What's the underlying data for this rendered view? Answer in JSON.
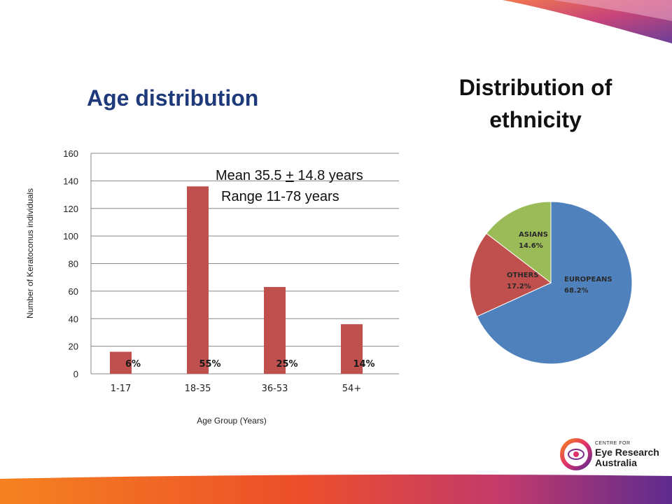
{
  "age_title": "Age distribution",
  "ethnicity_title_line1": "Distribution of",
  "ethnicity_title_line2": "ethnicity",
  "annotation": {
    "mean_prefix": "Mean 35.5 ",
    "mean_pm": "+",
    "mean_suffix": " 14.8 years",
    "range": "Range 11-78 years"
  },
  "logo": {
    "small": "CENTRE FOR",
    "line1": "Eye Research",
    "line2": "Australia"
  },
  "colors": {
    "bar": "#c0504d",
    "europeans": "#4f81bd",
    "others": "#c0504d",
    "asians": "#9bbb59",
    "pct_label": "#1a1a1a"
  },
  "chart_data": [
    {
      "type": "bar",
      "categories": [
        "1-17",
        "18-35",
        "36-53",
        "54+"
      ],
      "values": [
        16,
        136,
        63,
        36
      ],
      "percent_labels": [
        "6%",
        "55%",
        "25%",
        "14%"
      ],
      "xlabel": "Age Group (Years)",
      "ylabel": "Number of Keratoconus individuals",
      "ylim": [
        0,
        160
      ],
      "yticks": [
        0,
        20,
        40,
        60,
        80,
        100,
        120,
        140,
        160
      ],
      "grid": true,
      "legend": "none"
    },
    {
      "type": "pie",
      "slices": [
        {
          "name": "EUROPEANS",
          "value": 68.2,
          "label": "68.2%"
        },
        {
          "name": "OTHERS",
          "value": 17.2,
          "label": "17.2%"
        },
        {
          "name": "ASIANS",
          "value": 14.6,
          "label": "14.6%"
        }
      ],
      "legend": "none"
    }
  ]
}
